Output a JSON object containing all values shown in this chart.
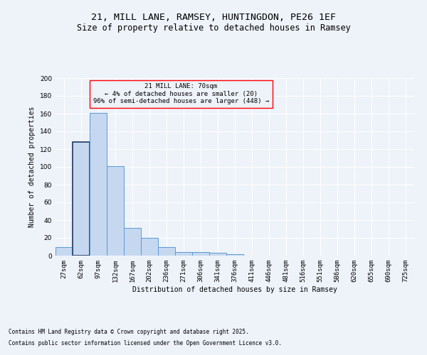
{
  "title1": "21, MILL LANE, RAMSEY, HUNTINGDON, PE26 1EF",
  "title2": "Size of property relative to detached houses in Ramsey",
  "xlabel": "Distribution of detached houses by size in Ramsey",
  "ylabel": "Number of detached properties",
  "bar_labels": [
    "27sqm",
    "62sqm",
    "97sqm",
    "132sqm",
    "167sqm",
    "202sqm",
    "236sqm",
    "271sqm",
    "306sqm",
    "341sqm",
    "376sqm",
    "411sqm",
    "446sqm",
    "481sqm",
    "516sqm",
    "551sqm",
    "586sqm",
    "620sqm",
    "655sqm",
    "690sqm",
    "725sqm"
  ],
  "bar_values": [
    10,
    128,
    161,
    101,
    31,
    20,
    10,
    4,
    4,
    3,
    2,
    0,
    0,
    0,
    0,
    0,
    0,
    0,
    0,
    0,
    0
  ],
  "highlight_bar_index": 1,
  "bar_color": "#c5d8f0",
  "bar_edge_color": "#5b9bd5",
  "highlight_edge_color": "#1f3864",
  "annotation_text": "21 MILL LANE: 70sqm\n← 4% of detached houses are smaller (20)\n96% of semi-detached houses are larger (448) →",
  "footnote1": "Contains HM Land Registry data © Crown copyright and database right 2025.",
  "footnote2": "Contains public sector information licensed under the Open Government Licence v3.0.",
  "ylim": [
    0,
    200
  ],
  "yticks": [
    0,
    20,
    40,
    60,
    80,
    100,
    120,
    140,
    160,
    180,
    200
  ],
  "background_color": "#eef2f9",
  "grid_color": "#ffffff",
  "title1_fontsize": 9.5,
  "title2_fontsize": 8.5,
  "axis_label_fontsize": 7,
  "tick_fontsize": 6.5,
  "annotation_fontsize": 6.5,
  "footnote_fontsize": 5.5
}
